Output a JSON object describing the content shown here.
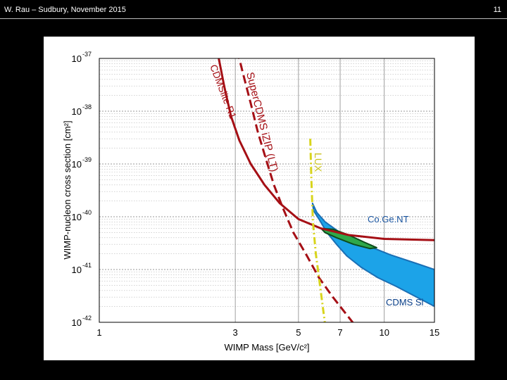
{
  "slide": {
    "header": "W. Rau – Sudbury, November 2015",
    "page_number": "11"
  },
  "chart_data": {
    "type": "line",
    "title": "",
    "xlabel": "WIMP Mass [GeV/c²]",
    "ylabel": "WIMP-nucleon cross section [cm²]",
    "xscale": "log",
    "yscale": "log",
    "xlim": [
      1,
      15
    ],
    "ylim": [
      1e-42,
      1e-37
    ],
    "x_ticks": [
      {
        "value": 1,
        "label": "1"
      },
      {
        "value": 3,
        "label": "3"
      },
      {
        "value": 5,
        "label": "5"
      },
      {
        "value": 7,
        "label": "7"
      },
      {
        "value": 10,
        "label": "10"
      },
      {
        "value": 15,
        "label": "15"
      }
    ],
    "y_ticks": [
      {
        "value": 1e-37,
        "base": "10",
        "exp": "-37"
      },
      {
        "value": 1e-38,
        "base": "10",
        "exp": "-38"
      },
      {
        "value": 1e-39,
        "base": "10",
        "exp": "-39"
      },
      {
        "value": 1e-40,
        "base": "10",
        "exp": "-40"
      },
      {
        "value": 1e-41,
        "base": "10",
        "exp": "-41"
      },
      {
        "value": 1e-42,
        "base": "10",
        "exp": "-42"
      }
    ],
    "series": [
      {
        "name": "CDMSlite R1",
        "label": "CDMSlite R1",
        "style": "solid",
        "color": "#a50f15",
        "points": [
          [
            2.6,
            1.3e-37
          ],
          [
            2.75,
            2.8e-38
          ],
          [
            2.9,
            8e-39
          ],
          [
            3.1,
            2.8e-39
          ],
          [
            3.4,
            1e-39
          ],
          [
            3.8,
            4e-40
          ],
          [
            4.3,
            1.8e-40
          ],
          [
            5.0,
            9e-41
          ],
          [
            6.0,
            6e-41
          ],
          [
            7.5,
            4.5e-41
          ],
          [
            10,
            3.8e-41
          ],
          [
            15,
            3.6e-41
          ]
        ]
      },
      {
        "name": "SuperCDMS iZIP (LT)",
        "label": "SuperCDMS iZIP (LT)",
        "style": "dashed",
        "color": "#a50f15",
        "points": [
          [
            3.05,
            1.4e-37
          ],
          [
            3.2,
            5e-38
          ],
          [
            3.4,
            1.4e-38
          ],
          [
            3.6,
            4e-39
          ],
          [
            3.85,
            1.2e-39
          ],
          [
            4.1,
            4e-40
          ],
          [
            4.4,
            1.5e-40
          ],
          [
            4.8,
            5e-41
          ],
          [
            5.3,
            2e-41
          ],
          [
            5.9,
            7e-42
          ],
          [
            6.6,
            3e-42
          ],
          [
            7.3,
            1.5e-42
          ],
          [
            8.0,
            8e-43
          ]
        ]
      },
      {
        "name": "LUX",
        "label": "LUX",
        "style": "dashdot",
        "color": "#d8d41c",
        "points": [
          [
            5.5,
            3e-39
          ],
          [
            5.55,
            5e-40
          ],
          [
            5.62,
            8e-41
          ],
          [
            5.75,
            2e-41
          ],
          [
            5.9,
            7e-42
          ],
          [
            6.05,
            2.5e-42
          ],
          [
            6.2,
            9e-43
          ]
        ]
      }
    ],
    "regions": [
      {
        "name": "CDMS Si",
        "label": "CDMS Si",
        "fill": "#1ca3e8",
        "stroke": "#1a6fb5",
        "points": [
          [
            5.6,
            1.8e-40
          ],
          [
            5.8,
            1.2e-40
          ],
          [
            6.2,
            8e-41
          ],
          [
            7.0,
            5e-41
          ],
          [
            8.5,
            3e-41
          ],
          [
            10.5,
            1.9e-41
          ],
          [
            13,
            1.3e-41
          ],
          [
            15,
            1e-41
          ],
          [
            15,
            2e-42
          ],
          [
            13,
            3e-42
          ],
          [
            11,
            4.8e-42
          ],
          [
            9.5,
            7e-42
          ],
          [
            8.3,
            1.1e-41
          ],
          [
            7.4,
            1.8e-41
          ],
          [
            6.8,
            3e-41
          ],
          [
            6.3,
            5e-41
          ],
          [
            5.9,
            9e-41
          ],
          [
            5.65,
            1.3e-40
          ]
        ]
      },
      {
        "name": "CoGeNT",
        "label": "Co.Ge.NT",
        "fill": "#2ea84a",
        "stroke": "#0d4d1c",
        "points": [
          [
            6.0,
            6e-41
          ],
          [
            6.6,
            5.8e-41
          ],
          [
            7.5,
            4.5e-41
          ],
          [
            8.5,
            3.3e-41
          ],
          [
            9.4,
            2.6e-41
          ],
          [
            8.9,
            2.5e-41
          ],
          [
            7.8,
            3e-41
          ],
          [
            6.8,
            4e-41
          ],
          [
            6.2,
            5e-41
          ]
        ]
      }
    ],
    "grid": true
  }
}
